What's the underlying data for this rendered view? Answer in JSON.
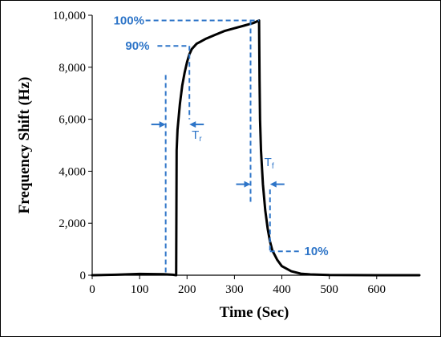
{
  "chart_data": {
    "type": "line",
    "title": "",
    "xlabel": "Time (Sec)",
    "ylabel": "Frequency Shift (Hz)",
    "xlim": [
      0,
      690
    ],
    "ylim": [
      0,
      10000
    ],
    "x_ticks": [
      0,
      100,
      200,
      300,
      400,
      500,
      600
    ],
    "y_ticks": [
      0,
      2000,
      4000,
      6000,
      8000,
      10000
    ],
    "x_tick_labels": [
      "0",
      "100",
      "200",
      "300",
      "400",
      "500",
      "600"
    ],
    "y_tick_labels": [
      "0",
      "2,000",
      "4,000",
      "6,000",
      "8,000",
      "10,000"
    ],
    "grid": false,
    "legend": "none",
    "line_color": "#000000",
    "annotation_color": "#2e75c8",
    "series": [
      {
        "x": [
          0,
          50,
          100,
          150,
          170,
          177,
          178,
          180,
          185,
          190,
          195,
          200,
          205,
          210,
          220,
          230,
          240,
          260,
          280,
          300,
          320,
          340,
          352,
          353,
          354,
          356,
          360,
          365,
          370,
          375,
          380,
          390,
          400,
          420,
          440,
          460,
          500,
          600,
          690
        ],
        "y": [
          0,
          20,
          50,
          40,
          20,
          0,
          4800,
          5600,
          6600,
          7300,
          7800,
          8200,
          8500,
          8700,
          8900,
          9000,
          9100,
          9250,
          9400,
          9500,
          9600,
          9700,
          9800,
          7500,
          6000,
          4800,
          3500,
          2500,
          1800,
          1300,
          950,
          600,
          350,
          150,
          60,
          30,
          10,
          0,
          0
        ]
      }
    ],
    "annotations": {
      "pct_100": {
        "label": "100%",
        "y": 9800,
        "x_from": 45,
        "x_to": 352
      },
      "pct_90": {
        "label": "90%",
        "y": 8820,
        "x_from": 70,
        "x_to": 205
      },
      "pct_10": {
        "label": "10%",
        "y": 920,
        "x_from": 375,
        "x_to": 515
      },
      "rise_time": {
        "symbol": "T",
        "subscript": "r",
        "x_start": 155,
        "x_end": 205,
        "x_top_start": 7700,
        "x_top_end": 8820,
        "arrow_y": 5800
      },
      "fall_time": {
        "symbol": "T",
        "subscript": "f",
        "x_start": 334,
        "x_end": 375,
        "x_top_start": 9800,
        "x_top_end": 3300,
        "arrow_y": 3500
      }
    }
  }
}
